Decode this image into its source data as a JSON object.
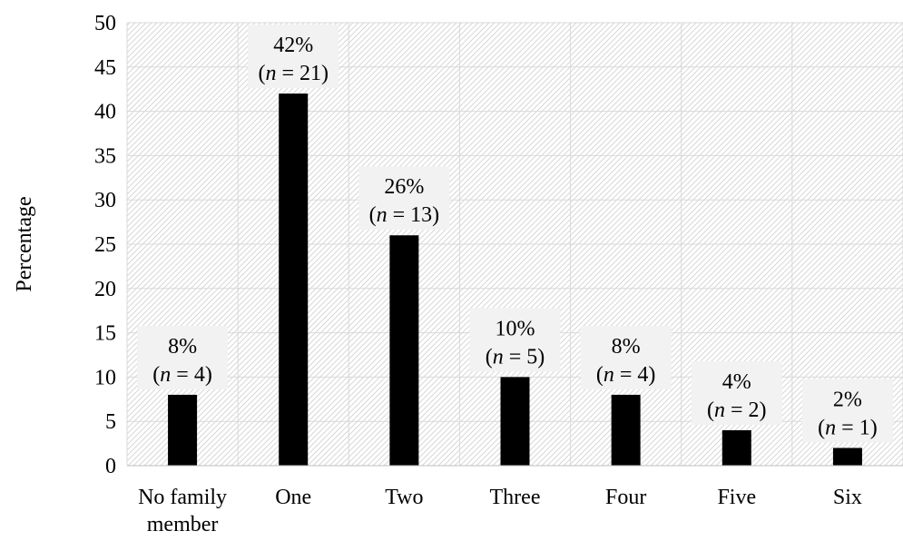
{
  "chart_data": {
    "type": "bar",
    "title": "",
    "xlabel": "",
    "ylabel": "Percentage",
    "ylim": [
      0,
      50
    ],
    "y_ticks": [
      0,
      5,
      10,
      15,
      20,
      25,
      30,
      35,
      40,
      45,
      50
    ],
    "categories": [
      [
        "No family",
        "member"
      ],
      [
        "One"
      ],
      [
        "Two"
      ],
      [
        "Three"
      ],
      [
        "Four"
      ],
      [
        "Five"
      ],
      [
        "Six"
      ]
    ],
    "values": [
      8,
      42,
      26,
      10,
      8,
      4,
      2
    ],
    "counts": [
      4,
      21,
      13,
      5,
      4,
      2,
      1
    ],
    "data_labels": [
      "8%",
      "42%",
      "26%",
      "10%",
      "8%",
      "4%",
      "2%"
    ],
    "count_labels": [
      {
        "var": "n",
        "rest": " = 4"
      },
      {
        "var": "n",
        "rest": " = 21"
      },
      {
        "var": "n",
        "rest": " = 13"
      },
      {
        "var": "n",
        "rest": " = 5"
      },
      {
        "var": "n",
        "rest": " = 4"
      },
      {
        "var": "n",
        "rest": " = 2"
      },
      {
        "var": "n",
        "rest": " = 1"
      }
    ],
    "grid": true,
    "legend": "none",
    "colors": {
      "bar": "#000000",
      "hatch": "#d0d0d0",
      "plot_background": "#ffffff",
      "label_background": "#f2f2f2",
      "gridline": "#d9d9d9"
    }
  }
}
